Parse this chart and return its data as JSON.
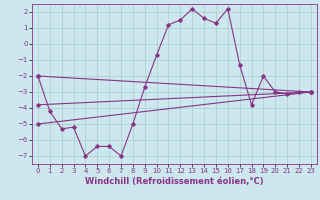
{
  "xlabel": "Windchill (Refroidissement éolien,°C)",
  "background_color": "#cce8ee",
  "grid_color": "#aacccc",
  "line_color": "#883388",
  "ylim": [
    -7.5,
    2.5
  ],
  "xlim": [
    -0.5,
    23.5
  ],
  "yticks": [
    2,
    1,
    0,
    -1,
    -2,
    -3,
    -4,
    -5,
    -6,
    -7
  ],
  "xticks": [
    0,
    1,
    2,
    3,
    4,
    5,
    6,
    7,
    8,
    9,
    10,
    11,
    12,
    13,
    14,
    15,
    16,
    17,
    18,
    19,
    20,
    21,
    22,
    23
  ],
  "line1_x": [
    0,
    1,
    2,
    3,
    4,
    5,
    6,
    7,
    8,
    9,
    10,
    11,
    12,
    13,
    14,
    15,
    16,
    17,
    18,
    19,
    20,
    21,
    22,
    23
  ],
  "line1_y": [
    -2.0,
    -4.2,
    -5.3,
    -5.2,
    -7.0,
    -6.4,
    -6.4,
    -7.0,
    -5.0,
    -2.7,
    -0.7,
    1.2,
    1.5,
    2.2,
    1.6,
    1.3,
    2.2,
    -1.3,
    -3.8,
    -2.0,
    -3.0,
    -3.1,
    -3.0,
    -3.0
  ],
  "line2_x": [
    0,
    23
  ],
  "line2_y": [
    -2.0,
    -3.0
  ],
  "line3_x": [
    0,
    23
  ],
  "line3_y": [
    -3.8,
    -3.0
  ],
  "line4_x": [
    0,
    23
  ],
  "line4_y": [
    -5.0,
    -3.0
  ],
  "tick_fontsize": 5,
  "xlabel_fontsize": 6
}
